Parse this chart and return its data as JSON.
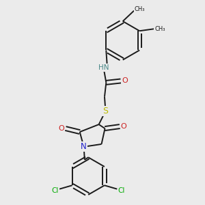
{
  "background_color": "#ebebeb",
  "bond_color": "#1a1a1a",
  "bond_width": 1.4,
  "atom_colors": {
    "C": "#1a1a1a",
    "H": "#1a1a1a",
    "N": "#2020cc",
    "NH": "#4a8888",
    "O": "#cc2020",
    "S": "#bbbb00",
    "Cl": "#00aa00"
  },
  "figsize": [
    3.0,
    3.0
  ],
  "dpi": 100,
  "xlim": [
    0,
    10
  ],
  "ylim": [
    0,
    10
  ]
}
